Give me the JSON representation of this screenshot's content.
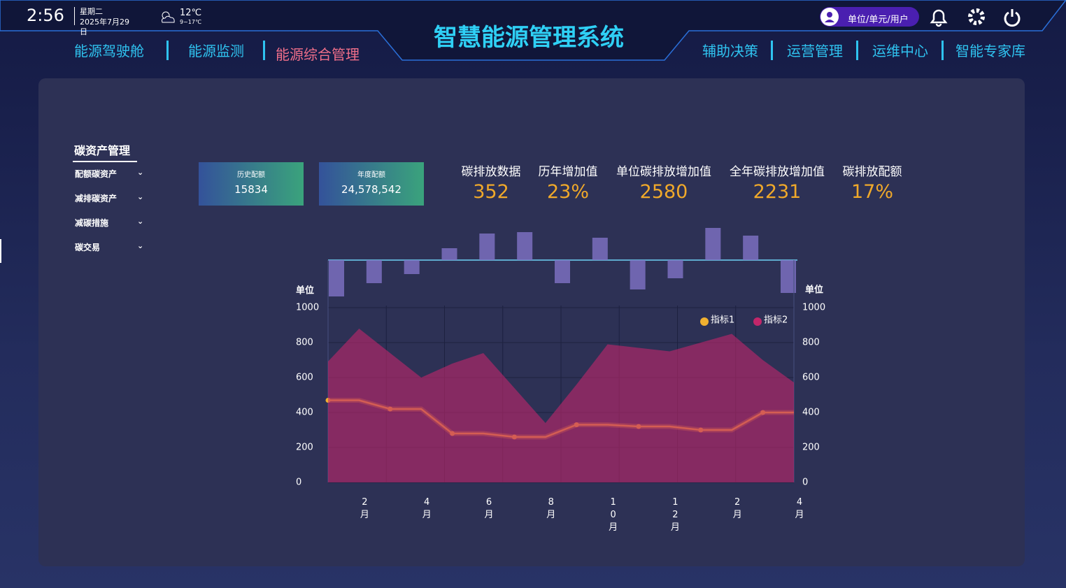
{
  "header": {
    "time": "2:56",
    "weekday": "星期二",
    "date": "2025年7月29日",
    "temperature": "12℃",
    "temperature_range": "9~17℃",
    "title": "智慧能源管理系统",
    "nav_left": [
      "能源驾驶舱",
      "能源监测",
      "能源综合管理"
    ],
    "nav_right": [
      "辅助决策",
      "运营管理",
      "运维中心",
      "智能专家库"
    ],
    "user": "单位/单元/用户"
  },
  "sidebar": {
    "title": "碳资产管理",
    "items": [
      "配额碳资产",
      "减排碳资产",
      "减碳措施",
      "碳交易"
    ]
  },
  "cards": [
    {
      "label": "历史配额",
      "value": "15834"
    },
    {
      "label": "年度配额",
      "value": "24,578,542"
    }
  ],
  "kpis": [
    {
      "label": "碳排放数据",
      "value": "352"
    },
    {
      "label": "历年增加值",
      "value": "23%"
    },
    {
      "label": "单位碳排放增加值",
      "value": "2580"
    },
    {
      "label": "全年碳排放增加值",
      "value": "2231"
    },
    {
      "label": "碳排放配额",
      "value": "17%"
    }
  ],
  "chart_data": [
    {
      "type": "bar",
      "values": [
        -52,
        -33,
        -20,
        17,
        38,
        40,
        -33,
        32,
        -42,
        -26,
        46,
        35,
        -47
      ],
      "ylim": [
        -60,
        60
      ],
      "color": "#7b6fc0"
    },
    {
      "type": "line",
      "y_label": "单位",
      "y2_label": "单位",
      "categories": [
        null,
        "2月",
        null,
        "4月",
        null,
        "6月",
        null,
        "8月",
        null,
        "10月",
        null,
        "12月",
        null,
        "2月",
        null,
        "4月"
      ],
      "series": [
        {
          "name": "指标1",
          "color": "#f0b030",
          "values": [
            470,
            470,
            420,
            420,
            280,
            280,
            260,
            260,
            330,
            330,
            320,
            320,
            300,
            300,
            400,
            400
          ]
        },
        {
          "name": "指标2",
          "color": "#c2266a",
          "area": true,
          "axis": "y2",
          "values": [
            692,
            880,
            740,
            600,
            680,
            740,
            540,
            340,
            560,
            790,
            770,
            750,
            800,
            850,
            700,
            572
          ]
        }
      ],
      "ylim": [
        0,
        1000
      ],
      "yticks": [
        0,
        200,
        400,
        600,
        800,
        1000
      ],
      "y2lim": [
        0,
        1000
      ],
      "y2ticks": [
        0,
        200,
        400,
        600,
        800,
        1000
      ],
      "grid": true,
      "legend": "top-right"
    }
  ]
}
